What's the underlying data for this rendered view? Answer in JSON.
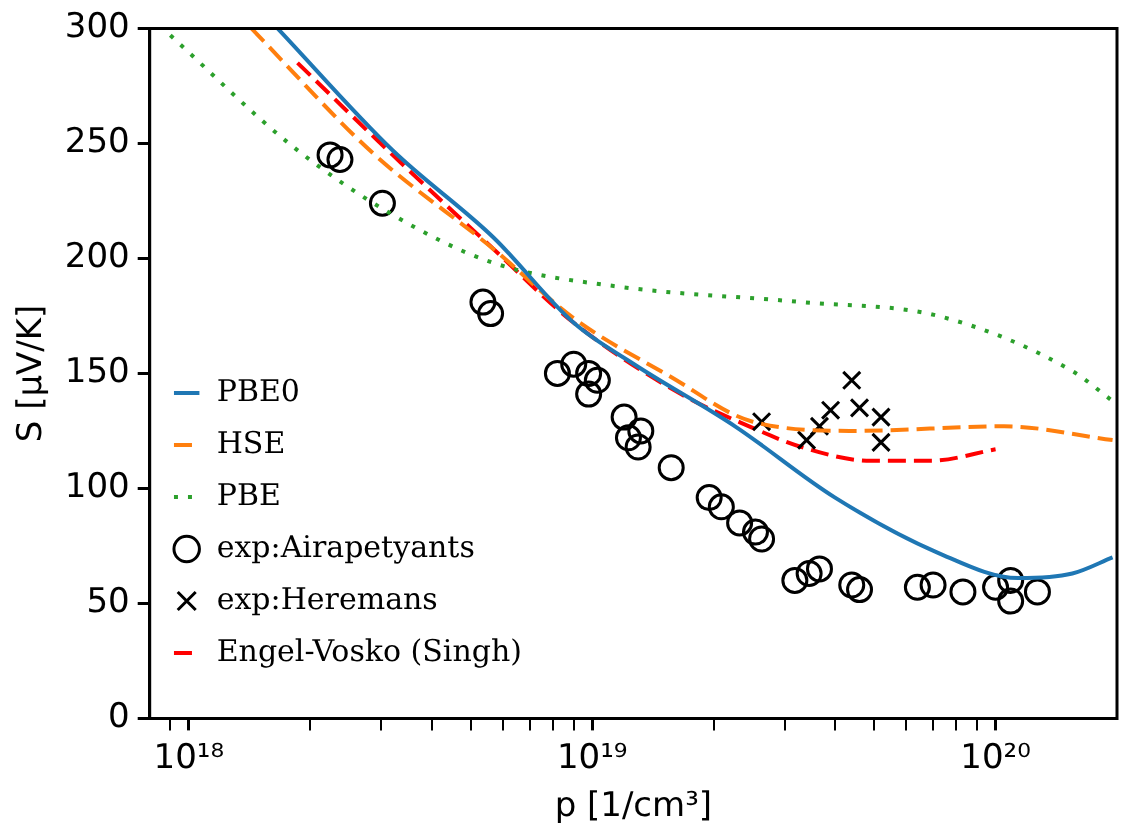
{
  "chart_data": {
    "type": "line",
    "xlabel": "p [1/cm³]",
    "ylabel": "S [μV/K]",
    "log": "x",
    "legend": "bottom left",
    "xlim": [
      8e+17,
      2e+20
    ],
    "ylim": [
      0,
      300
    ],
    "xticks": [
      {
        "value": 9e+17,
        "label": null
      },
      {
        "value": 1e+18,
        "label": "10¹⁸"
      },
      {
        "value": 2e+18,
        "label": null
      },
      {
        "value": 3e+18,
        "label": null
      },
      {
        "value": 4e+18,
        "label": null
      },
      {
        "value": 5e+18,
        "label": null
      },
      {
        "value": 6e+18,
        "label": null
      },
      {
        "value": 7e+18,
        "label": null
      },
      {
        "value": 8e+18,
        "label": null
      },
      {
        "value": 9e+18,
        "label": null
      },
      {
        "value": 1e+19,
        "label": "10¹⁹"
      },
      {
        "value": 2e+19,
        "label": null
      },
      {
        "value": 3e+19,
        "label": null
      },
      {
        "value": 4e+19,
        "label": null
      },
      {
        "value": 5e+19,
        "label": null
      },
      {
        "value": 6e+19,
        "label": null
      },
      {
        "value": 7e+19,
        "label": null
      },
      {
        "value": 8e+19,
        "label": null
      },
      {
        "value": 9e+19,
        "label": null
      },
      {
        "value": 1e+20,
        "label": "10²⁰"
      }
    ],
    "yticks": [
      0,
      50,
      100,
      150,
      200,
      250,
      300
    ],
    "series": [
      {
        "name": "PBE0",
        "type": "line",
        "color": "#1f77b4",
        "line_style": "solid",
        "marker": "none",
        "x": [
          1.66e+18,
          3.2e+18,
          5.7e+18,
          9e+18,
          1.27e+19,
          2.26e+19,
          4e+19,
          7.2e+19,
          1.14e+20,
          1.55e+20,
          1.95e+20
        ],
        "values": [
          300,
          247,
          209,
          172,
          154,
          127,
          96,
          72,
          61,
          63,
          70
        ]
      },
      {
        "name": "HSE",
        "type": "line",
        "color": "#ff7f0e",
        "line_style": "dashed",
        "marker": "none",
        "x": [
          1.43e+18,
          2.85e+18,
          5.7e+18,
          9e+18,
          1.55e+19,
          2.5e+19,
          4.5e+19,
          1.05e+20,
          1.95e+20
        ],
        "values": [
          300,
          246,
          204,
          174,
          149,
          129,
          125,
          127,
          121
        ]
      },
      {
        "name": "PBE",
        "type": "line",
        "color": "#2ca02c",
        "line_style": "dotted",
        "marker": "none",
        "x": [
          9e+17,
          1.8e+18,
          3.2e+18,
          5.7e+18,
          1.13e+19,
          3.3e+19,
          7.2e+19,
          1.55e+20,
          1.95e+20
        ],
        "values": [
          297,
          249,
          219,
          198,
          188,
          181,
          175,
          151,
          138
        ]
      },
      {
        "name": "exp:Airapetyants",
        "type": "scatter",
        "color": "#000000",
        "marker": "circle",
        "x": [
          2.24e+18,
          2.37e+18,
          3.02e+18,
          5.36e+18,
          5.6e+18,
          8.2e+18,
          9e+18,
          9.8e+18,
          9.8e+18,
          1.03e+19,
          1.2e+19,
          1.23e+19,
          1.32e+19,
          1.3e+19,
          1.57e+19,
          1.95e+19,
          2.09e+19,
          2.32e+19,
          2.54e+19,
          2.63e+19,
          3.18e+19,
          3.45e+19,
          3.66e+19,
          4.4e+19,
          4.6e+19,
          6.4e+19,
          7e+19,
          8.3e+19,
          1e+20,
          1.09e+20,
          1.09e+20,
          1.27e+20
        ],
        "values": [
          245,
          243,
          224,
          181,
          176,
          150,
          154,
          150,
          141,
          147,
          131,
          122,
          125,
          118,
          109,
          96,
          92,
          85,
          81,
          78,
          60,
          63,
          65,
          58,
          56,
          57,
          58,
          55,
          57,
          60,
          51,
          55
        ]
      },
      {
        "name": "exp:Heremans",
        "type": "scatter",
        "color": "#000000",
        "marker": "cross",
        "x": [
          2.63e+19,
          3.4e+19,
          3.66e+19,
          3.9e+19,
          4.4e+19,
          4.6e+19,
          5.2e+19,
          5.2e+19
        ],
        "values": [
          129,
          121,
          127,
          134,
          147,
          135,
          131,
          120
        ]
      },
      {
        "name": "Engel-Vosko (Singh)",
        "type": "line",
        "color": "#ff0000",
        "line_style": "dashed",
        "marker": "none",
        "x": [
          1.86e+18,
          3.2e+18,
          5.7e+18,
          9e+18,
          1.66e+19,
          2.45e+19,
          3.3e+19,
          4.9e+19,
          6.9e+19,
          1e+20
        ],
        "values": [
          285,
          245,
          204,
          172,
          141,
          127,
          118,
          112,
          112,
          117
        ]
      }
    ]
  }
}
